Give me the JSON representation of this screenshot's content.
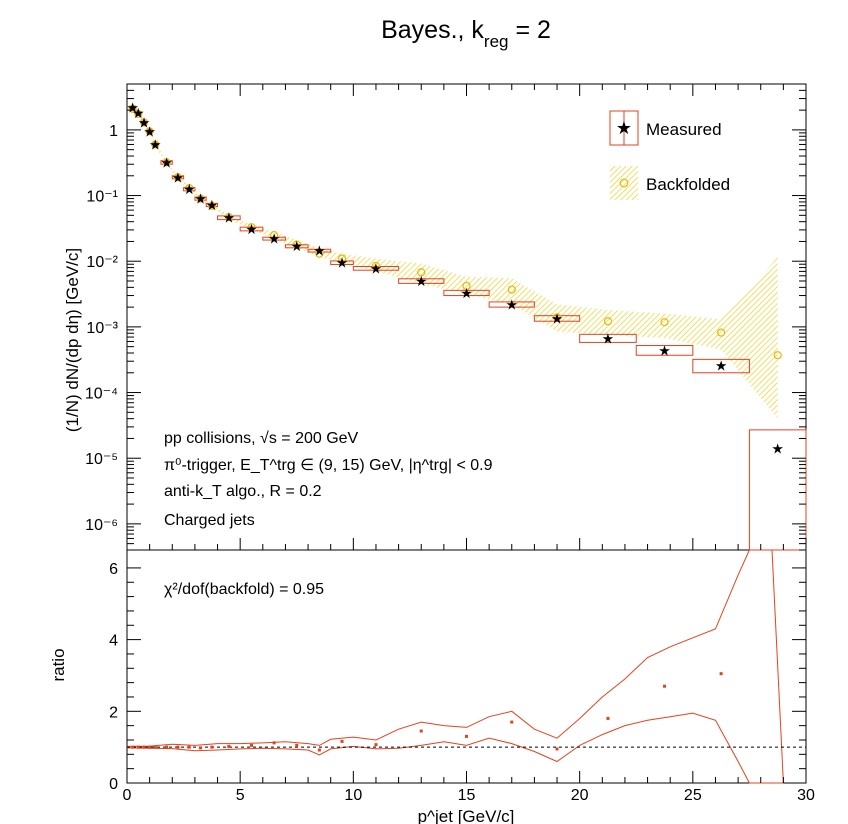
{
  "title": "Bayes., k",
  "title_sub": "reg",
  "title_tail": " = 2",
  "chart_data": {
    "type": "scatter",
    "top_panel": {
      "ylabel": "(1/N) dN/(dp dη) [GeV/c]",
      "yscale": "log",
      "ylim": [
        4e-07,
        5
      ],
      "yticks": [
        1e-06,
        1e-05,
        0.0001,
        0.001,
        0.01,
        0.1,
        1
      ],
      "ytick_labels": [
        "10⁻⁶",
        "10⁻⁵",
        "10⁻⁴",
        "10⁻³",
        "10⁻²",
        "10⁻¹",
        "1"
      ],
      "legend": {
        "position": "top-right",
        "entries": [
          "Measured",
          "Backfolded"
        ]
      },
      "annotations": [
        "pp collisions, √s = 200 GeV",
        "π⁰-trigger, E_T^trg ∈ (9, 15) GeV, |η^trg| < 0.9",
        "anti-k_T algo., R = 0.2",
        "Charged jets"
      ],
      "measured": {
        "x": [
          0.25,
          0.5,
          0.75,
          1.0,
          1.25,
          1.75,
          2.25,
          2.75,
          3.25,
          3.75,
          4.5,
          5.5,
          6.5,
          7.5,
          8.5,
          9.5,
          11.0,
          13.0,
          15.0,
          17.0,
          19.0,
          21.25,
          23.75,
          26.25,
          28.75
        ],
        "xerr": [
          0.125,
          0.125,
          0.125,
          0.125,
          0.125,
          0.25,
          0.25,
          0.25,
          0.25,
          0.25,
          0.5,
          0.5,
          0.5,
          0.5,
          0.5,
          0.5,
          1.0,
          1.0,
          1.0,
          1.0,
          1.0,
          1.25,
          1.25,
          1.25,
          1.25
        ],
        "y": [
          2.2,
          1.8,
          1.3,
          0.95,
          0.6,
          0.32,
          0.19,
          0.125,
          0.09,
          0.072,
          0.046,
          0.031,
          0.022,
          0.017,
          0.0145,
          0.0095,
          0.0078,
          0.005,
          0.0033,
          0.0022,
          0.00135,
          0.00067,
          0.00044,
          0.00026,
          1.4e-05
        ],
        "syst_lo": [
          2.1,
          1.7,
          1.25,
          0.9,
          0.57,
          0.3,
          0.18,
          0.118,
          0.085,
          0.068,
          0.043,
          0.029,
          0.021,
          0.016,
          0.0138,
          0.0089,
          0.0073,
          0.0046,
          0.003,
          0.002,
          0.00122,
          0.00058,
          0.00037,
          0.0002,
          4e-07
        ],
        "syst_hi": [
          2.3,
          1.9,
          1.36,
          1.0,
          0.63,
          0.34,
          0.2,
          0.132,
          0.095,
          0.076,
          0.049,
          0.033,
          0.0232,
          0.0178,
          0.0152,
          0.0101,
          0.0083,
          0.0054,
          0.0036,
          0.0024,
          0.00148,
          0.00077,
          0.00052,
          0.00032,
          2.7e-05
        ]
      },
      "backfolded": {
        "x": [
          0.25,
          0.5,
          0.75,
          1.0,
          1.25,
          1.75,
          2.25,
          2.75,
          3.25,
          3.75,
          4.5,
          5.5,
          6.5,
          7.5,
          8.5,
          9.5,
          11.0,
          13.0,
          15.0,
          17.0,
          19.0,
          21.25,
          23.75,
          26.25,
          28.75
        ],
        "y": [
          2.1,
          1.75,
          1.3,
          0.95,
          0.6,
          0.32,
          0.19,
          0.13,
          0.09,
          0.07,
          0.047,
          0.033,
          0.025,
          0.018,
          0.013,
          0.011,
          0.0085,
          0.0068,
          0.0042,
          0.0037,
          0.0014,
          0.00122,
          0.00118,
          0.00082,
          0.00037
        ],
        "band_lo": [
          2.0,
          1.65,
          1.22,
          0.9,
          0.56,
          0.3,
          0.18,
          0.12,
          0.085,
          0.066,
          0.044,
          0.03,
          0.022,
          0.016,
          0.0115,
          0.0095,
          0.007,
          0.0045,
          0.0032,
          0.0022,
          0.00085,
          0.00075,
          0.00068,
          0.00045,
          4e-05
        ],
        "band_hi": [
          2.2,
          1.85,
          1.38,
          1.0,
          0.64,
          0.34,
          0.2,
          0.14,
          0.095,
          0.074,
          0.05,
          0.036,
          0.028,
          0.021,
          0.016,
          0.013,
          0.011,
          0.0092,
          0.0058,
          0.0055,
          0.0022,
          0.0018,
          0.0016,
          0.0013,
          0.0115
        ]
      }
    },
    "bottom_panel": {
      "ylabel": "ratio",
      "ylim": [
        0,
        6.5
      ],
      "yticks": [
        0,
        2,
        4,
        6
      ],
      "reference_line": 1,
      "annotation": "χ²/dof(backfold) = 0.95",
      "ratio": {
        "x": [
          0.25,
          0.5,
          0.75,
          1.0,
          1.25,
          1.75,
          2.25,
          2.75,
          3.25,
          3.75,
          4.5,
          5.5,
          6.5,
          7.5,
          8.5,
          9.5,
          11.0,
          13.0,
          15.0,
          17.0,
          19.0,
          21.25,
          23.75,
          26.25
        ],
        "y": [
          1.0,
          1.0,
          1.0,
          1.0,
          1.0,
          1.0,
          1.0,
          1.0,
          0.98,
          1.0,
          1.02,
          1.05,
          1.12,
          1.05,
          0.92,
          1.16,
          1.07,
          1.45,
          1.3,
          1.7,
          0.95,
          1.8,
          2.7,
          3.05
        ]
      },
      "envelope_x": [
        0,
        1,
        2,
        3,
        4,
        5,
        6,
        7,
        8,
        8.5,
        9,
        10,
        11,
        12,
        13,
        14,
        15,
        16,
        17,
        18,
        19,
        20,
        21,
        22,
        23,
        24,
        25,
        26,
        27,
        27.5,
        28.5,
        29
      ],
      "envelope_hi": [
        1.02,
        1.03,
        1.08,
        1.05,
        1.1,
        1.1,
        1.12,
        1.15,
        1.1,
        1.05,
        1.22,
        1.28,
        1.2,
        1.5,
        1.7,
        1.6,
        1.55,
        1.85,
        2.0,
        1.5,
        1.25,
        1.8,
        2.4,
        2.9,
        3.5,
        3.8,
        4.05,
        4.3,
        5.8,
        6.5,
        6.5,
        0
      ],
      "envelope_lo": [
        0.98,
        0.97,
        0.96,
        0.9,
        0.92,
        0.95,
        0.97,
        0.95,
        0.92,
        0.78,
        0.95,
        1.02,
        0.95,
        0.97,
        1.05,
        1.15,
        1.05,
        1.25,
        1.1,
        0.88,
        0.6,
        1.05,
        1.35,
        1.6,
        1.75,
        1.85,
        1.95,
        1.75,
        0.6,
        0,
        0,
        0
      ]
    },
    "xlabel": "p^jet [GeV/c]",
    "xlim": [
      0,
      30
    ],
    "xticks": [
      0,
      5,
      10,
      15,
      20,
      25,
      30
    ],
    "colors": {
      "measured": "#e8401c",
      "backfolded": "#e8b800",
      "box": "#e8401c",
      "annotation_red": "#e01010"
    }
  }
}
